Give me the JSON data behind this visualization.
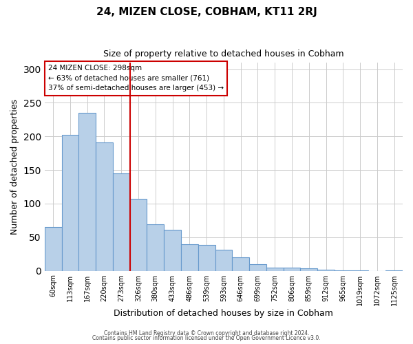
{
  "title": "24, MIZEN CLOSE, COBHAM, KT11 2RJ",
  "subtitle": "Size of property relative to detached houses in Cobham",
  "xlabel": "Distribution of detached houses by size in Cobham",
  "ylabel": "Number of detached properties",
  "bar_labels": [
    "60sqm",
    "113sqm",
    "167sqm",
    "220sqm",
    "273sqm",
    "326sqm",
    "380sqm",
    "433sqm",
    "486sqm",
    "539sqm",
    "593sqm",
    "646sqm",
    "699sqm",
    "752sqm",
    "806sqm",
    "859sqm",
    "912sqm",
    "965sqm",
    "1019sqm",
    "1072sqm",
    "1125sqm"
  ],
  "bar_values": [
    65,
    202,
    235,
    191,
    145,
    107,
    69,
    61,
    40,
    38,
    31,
    20,
    10,
    5,
    5,
    4,
    2,
    1,
    1,
    0,
    1
  ],
  "bar_color": "#b8d0e8",
  "bar_edge_color": "#6699cc",
  "vline_x": 4.5,
  "vline_color": "#cc0000",
  "annotation_title": "24 MIZEN CLOSE: 298sqm",
  "annotation_line1": "← 63% of detached houses are smaller (761)",
  "annotation_line2": "37% of semi-detached houses are larger (453) →",
  "annotation_box_color": "#cc0000",
  "ylim": [
    0,
    310
  ],
  "yticks": [
    0,
    50,
    100,
    150,
    200,
    250,
    300
  ],
  "footer1": "Contains HM Land Registry data © Crown copyright and database right 2024.",
  "footer2": "Contains public sector information licensed under the Open Government Licence v3.0.",
  "background_color": "#ffffff",
  "grid_color": "#cccccc"
}
